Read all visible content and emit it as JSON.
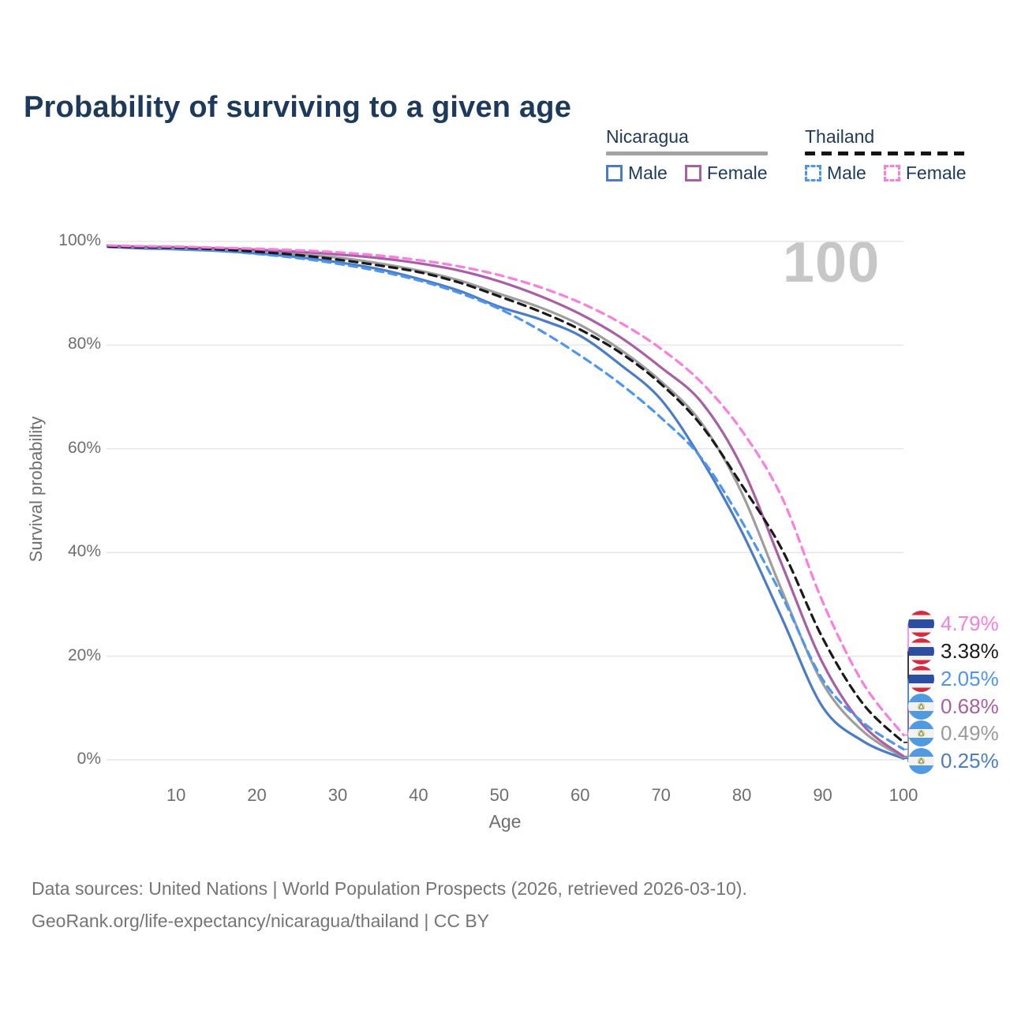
{
  "title": "Probability of surviving to a given age",
  "watermark": "100",
  "legend": {
    "groups": [
      {
        "label": "Nicaragua",
        "line_style": "solid",
        "line_color": "#a3a3a3",
        "items": [
          {
            "label": "Male",
            "color": "#4a7cc7",
            "dashed": false
          },
          {
            "label": "Female",
            "color": "#a85fa5",
            "dashed": false
          }
        ]
      },
      {
        "label": "Thailand",
        "line_style": "dashed",
        "line_color": "#141414",
        "items": [
          {
            "label": "Male",
            "color": "#4e95ef",
            "dashed": true
          },
          {
            "label": "Female",
            "color": "#fa7de0",
            "dashed": true
          }
        ]
      }
    ]
  },
  "chart_data": {
    "type": "line",
    "title": "Probability of surviving to a given age",
    "xlabel": "Age",
    "ylabel": "Survival probability",
    "xlim": [
      0,
      100
    ],
    "ylim": [
      0,
      100
    ],
    "grid": "horizontal",
    "legend_position": "top-right",
    "x_ticks": [
      10,
      20,
      30,
      40,
      50,
      60,
      70,
      80,
      90,
      100
    ],
    "y_ticks": [
      100,
      80,
      60,
      40,
      20,
      0
    ],
    "y_tick_labels": [
      "100%",
      "80%",
      "60%",
      "40%",
      "20%",
      "0%"
    ],
    "ages": [
      0,
      5,
      10,
      15,
      20,
      25,
      30,
      35,
      40,
      45,
      50,
      55,
      60,
      65,
      70,
      75,
      80,
      85,
      90,
      95,
      100
    ],
    "series": [
      {
        "name": "Nicaragua Male",
        "country": "nicaragua",
        "sex": "male",
        "color": "#4a7cc7",
        "dashed": false,
        "end_label": "0.25%",
        "values": [
          99.1,
          98.7,
          98.5,
          98.2,
          97.7,
          97.0,
          96.0,
          94.7,
          92.8,
          90.5,
          87.4,
          85.0,
          81.8,
          76.2,
          69.5,
          58.0,
          44.0,
          27.2,
          10.2,
          3.6,
          0.25
        ]
      },
      {
        "name": "Nicaragua Total",
        "country": "nicaragua",
        "sex": "total",
        "color": "#9e9e9e",
        "dashed": false,
        "end_label": "0.49%",
        "values": [
          99.2,
          98.9,
          98.7,
          98.5,
          98.1,
          97.5,
          96.9,
          95.8,
          94.4,
          92.5,
          89.9,
          87.3,
          83.9,
          79.1,
          73.0,
          65.0,
          51.5,
          32.5,
          14.8,
          5.5,
          0.49
        ]
      },
      {
        "name": "Nicaragua Female",
        "country": "nicaragua",
        "sex": "female",
        "color": "#a85fa5",
        "dashed": false,
        "end_label": "0.68%",
        "values": [
          99.3,
          99.0,
          98.9,
          98.7,
          98.4,
          98.0,
          97.5,
          96.8,
          95.8,
          94.4,
          92.3,
          89.5,
          86.0,
          81.5,
          75.7,
          69.0,
          56.5,
          37.5,
          18.7,
          6.7,
          0.68
        ]
      },
      {
        "name": "Thailand Male",
        "country": "thailand",
        "sex": "male",
        "color": "#4e95ef",
        "dashed": true,
        "end_label": "2.05%",
        "values": [
          99.0,
          98.8,
          98.5,
          98.2,
          97.6,
          96.8,
          95.7,
          94.3,
          92.5,
          90.1,
          87.0,
          82.9,
          78.0,
          72.5,
          66.0,
          58.2,
          46.0,
          31.5,
          15.5,
          7.2,
          2.05
        ]
      },
      {
        "name": "Thailand Total",
        "country": "thailand",
        "sex": "total",
        "color": "#1a1a1a",
        "dashed": true,
        "end_label": "3.38%",
        "values": [
          99.1,
          98.9,
          98.8,
          98.5,
          98.0,
          97.4,
          96.5,
          95.4,
          94.1,
          92.1,
          89.4,
          86.5,
          83.0,
          78.5,
          72.5,
          64.5,
          53.0,
          40.5,
          23.5,
          10.8,
          3.38
        ]
      },
      {
        "name": "Thailand Female",
        "country": "thailand",
        "sex": "female",
        "color": "#fa7de0",
        "dashed": true,
        "end_label": "4.79%",
        "values": [
          99.3,
          99.1,
          99.0,
          98.8,
          98.6,
          98.3,
          97.9,
          97.3,
          96.4,
          95.2,
          93.5,
          91.2,
          88.2,
          84.3,
          79.3,
          72.8,
          63.5,
          50.5,
          30.5,
          14.8,
          4.79
        ]
      }
    ],
    "end_labels": [
      {
        "text": "4.79%",
        "color": "#fa7de0",
        "flag": "thailand"
      },
      {
        "text": "3.38%",
        "color": "#1a1a1a",
        "flag": "thailand"
      },
      {
        "text": "2.05%",
        "color": "#4e95ef",
        "flag": "thailand"
      },
      {
        "text": "0.68%",
        "color": "#a85fa5",
        "flag": "nicaragua"
      },
      {
        "text": "0.49%",
        "color": "#9a9a9a",
        "flag": "nicaragua"
      },
      {
        "text": "0.25%",
        "color": "#4a7cc7",
        "flag": "nicaragua"
      }
    ]
  },
  "footer": {
    "line1": "Data sources: United Nations | World Population Prospects (2026, retrieved 2026-03-10).",
    "line2": "GeoRank.org/life-expectancy/nicaragua/thailand | CC BY"
  }
}
